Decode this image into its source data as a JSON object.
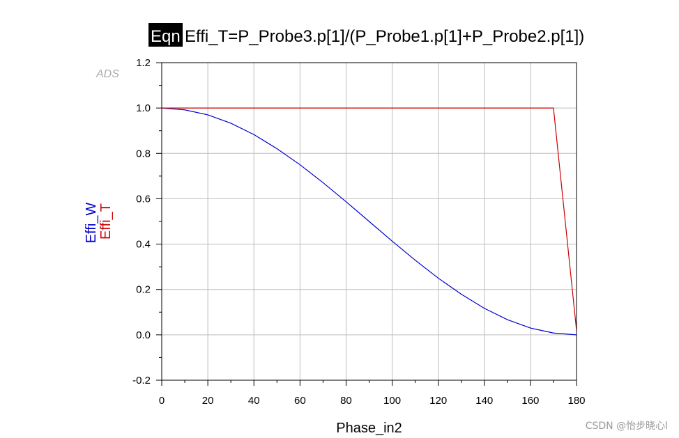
{
  "equation": {
    "tag": "Eqn",
    "text": "Effi_T=P_Probe3.p[1]/(P_Probe1.p[1]+P_Probe2.p[1])"
  },
  "logo_text": "ADS",
  "watermark": "CSDN @怡步晓心l",
  "colors": {
    "series_w": "#0000cc",
    "series_t": "#cc0000",
    "grid": "#bdbdbd",
    "frame": "#000000"
  },
  "chart_data": {
    "type": "line",
    "title": "",
    "xlabel": "Phase_in2",
    "ylabel": "",
    "xlim": [
      0,
      180
    ],
    "ylim": [
      -0.2,
      1.2
    ],
    "x_ticks": [
      "0",
      "20",
      "40",
      "60",
      "80",
      "100",
      "120",
      "140",
      "160",
      "180"
    ],
    "x_tick_values": [
      0,
      20,
      40,
      60,
      80,
      100,
      120,
      140,
      160,
      180
    ],
    "y_ticks": [
      "-0.2",
      "0.0",
      "0.2",
      "0.4",
      "0.6",
      "0.8",
      "1.0",
      "1.2"
    ],
    "y_tick_values": [
      -0.2,
      0.0,
      0.2,
      0.4,
      0.6,
      0.8,
      1.0,
      1.2
    ],
    "grid": true,
    "series": [
      {
        "name": "Effi_W",
        "x": [
          0,
          10,
          20,
          30,
          40,
          50,
          60,
          70,
          80,
          90,
          100,
          110,
          120,
          130,
          140,
          150,
          160,
          170,
          180
        ],
        "y": [
          1.0,
          0.992,
          0.97,
          0.933,
          0.883,
          0.821,
          0.75,
          0.671,
          0.587,
          0.5,
          0.413,
          0.329,
          0.25,
          0.179,
          0.117,
          0.067,
          0.03,
          0.008,
          0.0
        ]
      },
      {
        "name": "Effi_T",
        "x": [
          0,
          170,
          180
        ],
        "y": [
          1.0,
          1.0,
          0.02
        ]
      }
    ]
  }
}
